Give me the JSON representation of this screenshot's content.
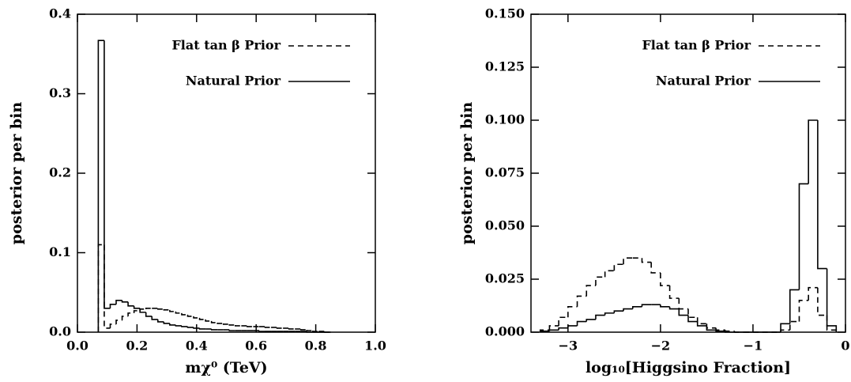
{
  "chart_data": [
    {
      "type": "histogram",
      "xlabel": "mχ⁰ (TeV)",
      "ylabel": "posterior per bin",
      "xlim": [
        0,
        1.0
      ],
      "ylim": [
        0,
        0.4
      ],
      "xticks": [
        {
          "value": 0,
          "label": "0.0"
        },
        0.2,
        0.4,
        0.6,
        0.8,
        {
          "value": 1,
          "label": "1.0"
        }
      ],
      "yticks": [
        {
          "value": 0,
          "label": "0.0"
        },
        0.1,
        0.2,
        0.3,
        0.4
      ],
      "legend": "upper right",
      "bins": [
        0.07,
        0.09,
        0.11,
        0.13,
        0.15,
        0.17,
        0.19,
        0.21,
        0.23,
        0.25,
        0.27,
        0.29,
        0.31,
        0.33,
        0.35,
        0.37,
        0.39,
        0.41,
        0.43,
        0.45,
        0.47,
        0.49,
        0.51,
        0.53,
        0.55,
        0.57,
        0.59,
        0.61,
        0.63,
        0.65,
        0.67,
        0.69,
        0.71,
        0.73,
        0.75,
        0.77,
        0.79,
        0.81,
        0.83,
        0.85
      ],
      "series": [
        {
          "name": "Flat tan β Prior",
          "color": "#000000",
          "linestyle": "dashed",
          "values": [
            0.11,
            0.005,
            0.01,
            0.015,
            0.02,
            0.024,
            0.027,
            0.029,
            0.03,
            0.03,
            0.029,
            0.028,
            0.026,
            0.024,
            0.022,
            0.02,
            0.018,
            0.016,
            0.014,
            0.012,
            0.011,
            0.01,
            0.009,
            0.008,
            0.008,
            0.007,
            0.007,
            0.007,
            0.006,
            0.006,
            0.005,
            0.005,
            0.004,
            0.004,
            0.003,
            0.002,
            0.001,
            0.001,
            0
          ]
        },
        {
          "name": "Natural Prior",
          "color": "#000000",
          "linestyle": "solid",
          "values": [
            0.367,
            0.03,
            0.035,
            0.04,
            0.038,
            0.033,
            0.03,
            0.025,
            0.02,
            0.016,
            0.013,
            0.011,
            0.009,
            0.008,
            0.007,
            0.006,
            0.005,
            0.004,
            0.004,
            0.003,
            0.003,
            0.003,
            0.002,
            0.002,
            0.002,
            0.002,
            0.002,
            0.001,
            0.001,
            0.001,
            0.001,
            0.001,
            0.001,
            0.001,
            0.001,
            0,
            0,
            0,
            0
          ]
        }
      ]
    },
    {
      "type": "histogram",
      "xlabel": "log₁₀[Higgsino Fraction]",
      "ylabel": "posterior per bin",
      "xlim": [
        -3.4,
        0
      ],
      "ylim": [
        0,
        0.15
      ],
      "xticks": [
        {
          "value": -3,
          "label": "−3"
        },
        {
          "value": -2,
          "label": "−2"
        },
        {
          "value": -1,
          "label": "−1"
        },
        0
      ],
      "yticks": [
        {
          "value": 0,
          "label": "0.000"
        },
        0.025,
        {
          "value": 0.05,
          "label": "0.050"
        },
        0.075,
        {
          "value": 0.1,
          "label": "0.100"
        },
        0.125,
        {
          "value": 0.15,
          "label": "0.150"
        }
      ],
      "legend": "upper right",
      "bins": [
        -3.3,
        -3.2,
        -3.1,
        -3.0,
        -2.9,
        -2.8,
        -2.7,
        -2.6,
        -2.5,
        -2.4,
        -2.3,
        -2.2,
        -2.1,
        -2.0,
        -1.9,
        -1.8,
        -1.7,
        -1.6,
        -1.5,
        -1.4,
        -1.3,
        -1.2,
        -1.1,
        -1.0,
        -0.9,
        -0.8,
        -0.7,
        -0.6,
        -0.5,
        -0.4,
        -0.3,
        -0.2,
        -0.1
      ],
      "series": [
        {
          "name": "Flat tan β Prior",
          "color": "#000000",
          "linestyle": "dashed",
          "values": [
            0.001,
            0.003,
            0.007,
            0.012,
            0.017,
            0.022,
            0.026,
            0.029,
            0.032,
            0.035,
            0.035,
            0.033,
            0.028,
            0.022,
            0.016,
            0.011,
            0.007,
            0.004,
            0.002,
            0.001,
            0.0005,
            0,
            0,
            0,
            0,
            0,
            0.001,
            0.005,
            0.015,
            0.021,
            0.008,
            0.001
          ]
        },
        {
          "name": "Natural Prior",
          "color": "#000000",
          "linestyle": "solid",
          "values": [
            0.0005,
            0.001,
            0.002,
            0.003,
            0.005,
            0.006,
            0.008,
            0.009,
            0.01,
            0.011,
            0.012,
            0.013,
            0.013,
            0.012,
            0.011,
            0.008,
            0.005,
            0.003,
            0.001,
            0.0005,
            0,
            0,
            0,
            0,
            0,
            0,
            0.004,
            0.02,
            0.07,
            0.1,
            0.03,
            0.003
          ]
        }
      ]
    }
  ]
}
